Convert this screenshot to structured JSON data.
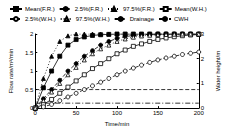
{
  "chart_data": {
    "type": "line",
    "x_label": "Time/min",
    "y_label": "Flow rate/m³/min",
    "y2_label": "Water height/m",
    "x": [
      0,
      10,
      20,
      30,
      40,
      50,
      60,
      70,
      80,
      90,
      100,
      110,
      120,
      130,
      140,
      150,
      160,
      170,
      180,
      190,
      200
    ],
    "xlim": [
      0,
      200
    ],
    "xticks": [
      0,
      50,
      100,
      150,
      200
    ],
    "ylim": [
      0,
      2
    ],
    "yticks": [
      0,
      0.5,
      1,
      1.5,
      2
    ],
    "y2lim": [
      0,
      3
    ],
    "y2ticks": [
      0,
      1,
      2,
      3
    ],
    "grid": false,
    "legend": "top",
    "series": [
      {
        "name": "Mean(F.R.)",
        "color": "#000000",
        "marker": "filled_square",
        "line_style": "solid",
        "values": [
          0,
          0.55,
          1.0,
          1.4,
          1.7,
          1.85,
          1.92,
          1.96,
          1.98,
          1.99,
          2.0,
          2.0,
          2.0,
          2.0,
          2.0,
          2.0,
          2.0,
          2.0,
          2.0,
          2.0,
          2.0
        ]
      },
      {
        "name": "2.5%(F.R.)",
        "color": "#000000",
        "marker": "filled_circle",
        "line_style": "dashed",
        "values": [
          0,
          0.25,
          0.5,
          0.75,
          1.0,
          1.2,
          1.4,
          1.55,
          1.7,
          1.8,
          1.88,
          1.93,
          1.96,
          1.98,
          1.99,
          2.0,
          2.0,
          2.0,
          2.0,
          2.0,
          2.0
        ]
      },
      {
        "name": "97.5%(F.R.)",
        "color": "#000000",
        "marker": "filled_triangle",
        "line_style": "dotted",
        "values": [
          0,
          0.8,
          1.4,
          1.8,
          1.95,
          2.0,
          2.0,
          2.0,
          2.0,
          2.0,
          2.0,
          2.0,
          2.0,
          2.0,
          2.0,
          2.0,
          2.0,
          2.0,
          2.0,
          2.0,
          2.0
        ]
      },
      {
        "name": "Mean(W.H.)",
        "color": "#000000",
        "marker": "open_square",
        "line_style": "solid",
        "axis": "y2",
        "values": [
          0,
          0.15,
          0.35,
          0.6,
          0.85,
          1.1,
          1.35,
          1.6,
          1.8,
          2.0,
          2.2,
          2.35,
          2.5,
          2.6,
          2.7,
          2.78,
          2.84,
          2.89,
          2.93,
          2.96,
          2.98
        ]
      },
      {
        "name": "2.5%(W.H.)",
        "color": "#000000",
        "marker": "open_circle",
        "line_style": "dashed",
        "axis": "y2",
        "values": [
          0,
          0.05,
          0.15,
          0.3,
          0.45,
          0.6,
          0.75,
          0.9,
          1.05,
          1.2,
          1.35,
          1.5,
          1.62,
          1.74,
          1.85,
          1.95,
          2.03,
          2.1,
          2.17,
          2.22,
          2.27
        ]
      },
      {
        "name": "97.5%(W.H.)",
        "color": "#000000",
        "marker": "open_triangle",
        "line_style": "dotted",
        "axis": "y2",
        "values": [
          0,
          0.3,
          0.65,
          1.0,
          1.35,
          1.65,
          1.95,
          2.2,
          2.4,
          2.55,
          2.7,
          2.8,
          2.87,
          2.92,
          2.95,
          2.97,
          2.98,
          2.99,
          3.0,
          3.0,
          3.0
        ]
      },
      {
        "name": "Drainage",
        "color": "#000000",
        "marker": "none",
        "line_style": "dashed",
        "values": [
          0.5,
          0.5,
          0.5,
          0.5,
          0.5,
          0.5,
          0.5,
          0.5,
          0.5,
          0.5,
          0.5,
          0.5,
          0.5,
          0.5,
          0.5,
          0.5,
          0.5,
          0.5,
          0.5,
          0.5,
          0.5
        ]
      },
      {
        "name": "CWH",
        "color": "#000000",
        "marker": "none",
        "line_style": "dashdot",
        "axis": "y2",
        "values": [
          0.2,
          0.2,
          0.2,
          0.2,
          0.2,
          0.2,
          0.2,
          0.2,
          0.2,
          0.2,
          0.2,
          0.2,
          0.2,
          0.2,
          0.2,
          0.2,
          0.2,
          0.2,
          0.2,
          0.2,
          0.2
        ]
      }
    ]
  }
}
